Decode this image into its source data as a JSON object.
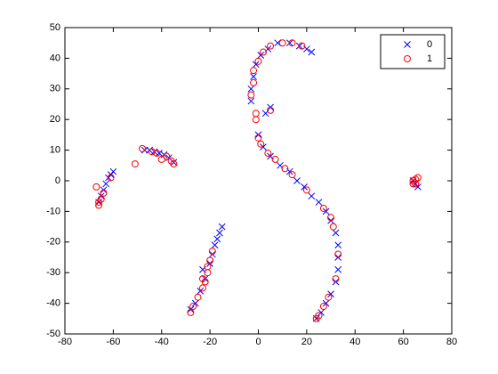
{
  "chart_data": {
    "type": "scatter",
    "xlim": [
      -80,
      80
    ],
    "ylim": [
      -50,
      50
    ],
    "xticks": [
      -80,
      -60,
      -40,
      -20,
      0,
      20,
      40,
      60,
      80
    ],
    "yticks": [
      -50,
      -40,
      -30,
      -20,
      -10,
      0,
      10,
      20,
      30,
      40,
      50
    ],
    "legend": "upper right",
    "series": [
      {
        "name": "0",
        "color": "#0000ff",
        "marker": "x",
        "x": [
          -66,
          -65,
          -64,
          -63,
          -62,
          -61,
          -60,
          -47,
          -45,
          -43,
          -41,
          -39,
          -37,
          -35,
          -28,
          -26,
          -24,
          -22,
          -20,
          -19,
          -18,
          -17,
          -16,
          -15,
          -23,
          -3,
          -3,
          -2,
          -1,
          1,
          4,
          8,
          13,
          17,
          20,
          22,
          3,
          5,
          0,
          2,
          5,
          9,
          13,
          16,
          19,
          22,
          25,
          28,
          30,
          32,
          33,
          33,
          33,
          32,
          30,
          28,
          26,
          24,
          65,
          66,
          64
        ],
        "values": [
          -7,
          -5,
          -3,
          -1,
          1,
          2,
          3,
          10,
          10,
          9.5,
          9,
          8.5,
          7.5,
          6,
          -42,
          -40,
          -36,
          -32,
          -27,
          -24,
          -21,
          -19,
          -17,
          -15,
          -29,
          26,
          30,
          34,
          38,
          41,
          43,
          45,
          45,
          44,
          43,
          42,
          22,
          24,
          15,
          11,
          8,
          5,
          3,
          0,
          -2,
          -5,
          -7,
          -10,
          -13,
          -17,
          -21,
          -25,
          -29,
          -33,
          -37,
          -40,
          -43,
          -45,
          -1,
          -2,
          0
        ]
      },
      {
        "name": "1",
        "color": "#ff0000",
        "marker": "o",
        "x": [
          -67,
          -66,
          -66,
          -65,
          -64,
          -61,
          -51,
          -48,
          -44,
          -42,
          -40,
          -38,
          -36,
          -35,
          -28,
          -27,
          -25,
          -23,
          -22,
          -21,
          -20,
          -19,
          -23,
          -21,
          -3,
          -2,
          -2,
          0,
          2,
          5,
          10,
          14,
          18,
          -1,
          -1,
          0,
          1,
          4,
          7,
          11,
          14,
          20,
          27,
          30,
          31,
          33,
          32,
          29,
          27,
          25,
          24,
          5,
          64,
          65,
          66,
          64,
          65
        ],
        "values": [
          -2,
          -7,
          -8,
          -6,
          -4,
          1,
          5.5,
          10.5,
          9.5,
          9,
          7,
          8,
          6.5,
          5.5,
          -43,
          -41,
          -38,
          -35,
          -33,
          -30,
          -26,
          -23,
          -32,
          -28,
          28,
          32,
          36,
          39,
          42,
          44,
          45,
          45,
          44,
          22,
          20,
          14,
          12,
          9,
          7,
          4,
          2,
          -3,
          -9,
          -12,
          -15,
          -24,
          -32,
          -38,
          -41,
          -44,
          -45,
          23,
          0,
          -1,
          1,
          -1,
          0.5
        ]
      }
    ]
  }
}
